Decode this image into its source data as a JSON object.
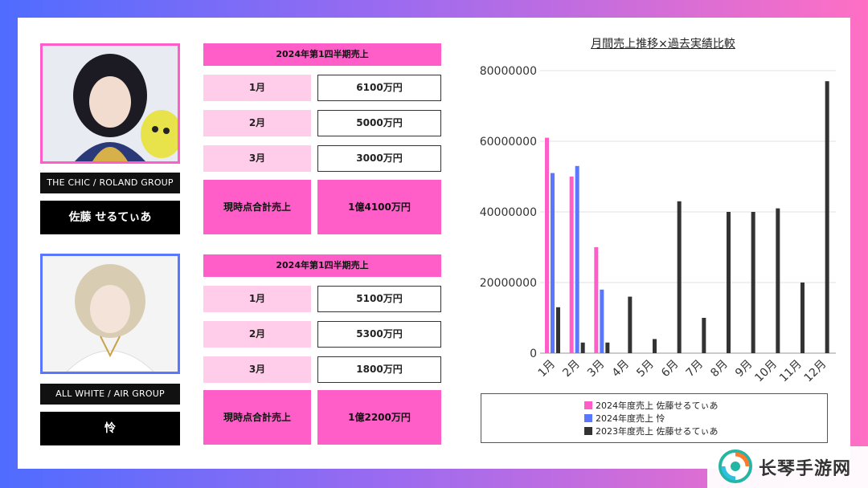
{
  "person1": {
    "group": "THE CHIC / ROLAND GROUP",
    "name": "佐藤 せるてぃあ",
    "table": {
      "header": "2024年第1四半期売上",
      "rows": [
        {
          "month": "1月",
          "value": "6100万円"
        },
        {
          "month": "2月",
          "value": "5000万円"
        },
        {
          "month": "3月",
          "value": "3000万円"
        }
      ],
      "total_label": "現時点合計売上",
      "total_value": "1億4100万円"
    }
  },
  "person2": {
    "group": "ALL WHITE / AIR GROUP",
    "name": "怜",
    "table": {
      "header": "2024年第1四半期売上",
      "rows": [
        {
          "month": "1月",
          "value": "5100万円"
        },
        {
          "month": "2月",
          "value": "5300万円"
        },
        {
          "month": "3月",
          "value": "1800万円"
        }
      ],
      "total_label": "現時点合計売上",
      "total_value": "1億2200万円"
    }
  },
  "chart_data": {
    "type": "bar",
    "title": "月間売上推移×過去実績比較",
    "categories": [
      "1月",
      "2月",
      "3月",
      "4月",
      "5月",
      "6月",
      "7月",
      "8月",
      "9月",
      "10月",
      "11月",
      "12月"
    ],
    "yticks": [
      "0",
      "20000000",
      "40000000",
      "60000000",
      "80000000"
    ],
    "ylim": [
      0,
      80000000
    ],
    "grid": true,
    "legend_position": "bottom",
    "series": [
      {
        "name": "2024年度売上 佐藤せるてぃあ",
        "color": "#ff5ec8",
        "values": [
          61000000,
          50000000,
          30000000,
          null,
          null,
          null,
          null,
          null,
          null,
          null,
          null,
          null
        ]
      },
      {
        "name": "2024年度売上 怜",
        "color": "#5a78ff",
        "values": [
          51000000,
          53000000,
          18000000,
          null,
          null,
          null,
          null,
          null,
          null,
          null,
          null,
          null
        ]
      },
      {
        "name": "2023年度売上 佐藤せるてぃあ",
        "color": "#333333",
        "values": [
          13000000,
          3000000,
          3000000,
          16000000,
          4000000,
          43000000,
          10000000,
          40000000,
          40000000,
          41000000,
          20000000,
          77000000
        ]
      }
    ]
  },
  "watermark": {
    "text": "长琴手游网",
    "logo_icon": "swirl-logo-icon"
  }
}
